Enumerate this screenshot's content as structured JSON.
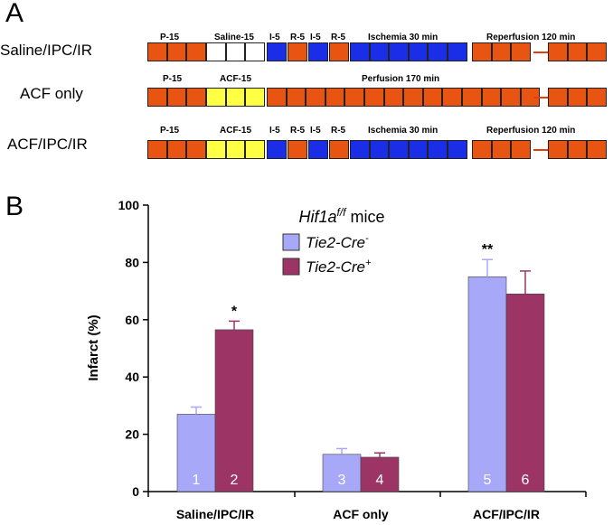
{
  "panel_a": {
    "letter": "A",
    "colors": {
      "reperfusion": "#e85512",
      "saline": "#ffffff",
      "acf": "#ffff44",
      "ischemia": "#1a2ee8"
    },
    "rows": [
      {
        "label": "Saline/IPC/IR",
        "segments": [
          "P-15",
          "Saline-15",
          "I-5",
          "R-5",
          "I-5",
          "R-5",
          "Ischemia 30 min",
          "Reperfusion 120 min"
        ]
      },
      {
        "label": "ACF only",
        "segments": [
          "P-15",
          "ACF-15",
          "Perfusion 170 min"
        ]
      },
      {
        "label": "ACF/IPC/IR",
        "segments": [
          "P-15",
          "ACF-15",
          "I-5",
          "R-5",
          "I-5",
          "R-5",
          "Ischemia 30 min",
          "Reperfusion 120 min"
        ]
      }
    ]
  },
  "panel_b": {
    "letter": "B",
    "colors": {
      "tie2_neg": "#a8a8f8",
      "tie2_pos": "#9c3566"
    },
    "chart_data": {
      "type": "bar",
      "title": "Hif1a",
      "title_superscript": "f/f",
      "title_suffix": " mice",
      "ylabel": "Infarct  (%)",
      "ylim": [
        0,
        100
      ],
      "yticks": [
        "0",
        "20",
        "40",
        "60",
        "80",
        "100"
      ],
      "categories": [
        "Saline/IPC/IR",
        "ACF only",
        "ACF/IPC/IR"
      ],
      "series": [
        {
          "name": "Tie2-Cre",
          "superscript": "-",
          "values": [
            27,
            13,
            75
          ],
          "errors": [
            2.5,
            2,
            6
          ],
          "bar_labels": [
            "1",
            "3",
            "5"
          ],
          "significance": [
            "",
            "",
            "**"
          ]
        },
        {
          "name": "Tie2-Cre",
          "superscript": "+",
          "values": [
            56.5,
            12,
            69
          ],
          "errors": [
            3,
            1.5,
            8
          ],
          "bar_labels": [
            "2",
            "4",
            "6"
          ],
          "significance": [
            "*",
            "",
            ""
          ]
        }
      ],
      "legend_position": "top-center"
    }
  }
}
